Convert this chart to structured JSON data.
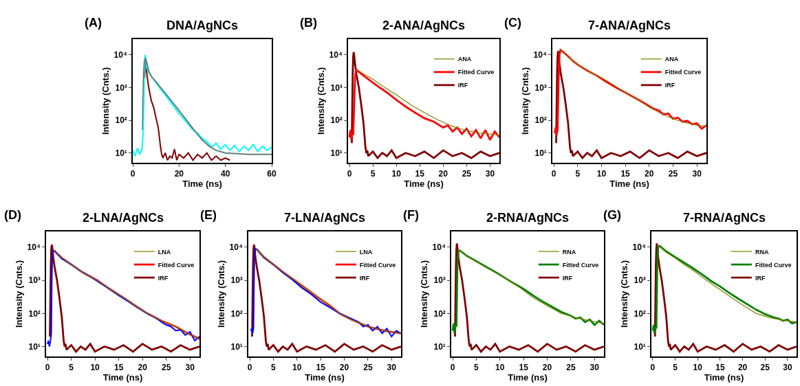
{
  "chart_data": [
    {
      "type": "line",
      "title": "DNA/AgNCs",
      "annotations": [
        "(A)"
      ],
      "xlabel": "Time (ns)",
      "ylabel": "Intensity (Cnts.)",
      "log": "y",
      "grid": false,
      "legend": false,
      "marker": "none",
      "line_style": "solid",
      "xlim": [
        0,
        60
      ],
      "xticks": [
        0,
        20,
        40,
        60
      ],
      "ylim": [
        5,
        30000
      ],
      "yticks": [
        {
          "value": 10,
          "label": "10¹"
        },
        {
          "value": 100,
          "label": "10²"
        },
        {
          "value": 1000,
          "label": "10³"
        },
        {
          "value": 10000,
          "label": "10⁴"
        }
      ],
      "series": [
        {
          "color": "#5f7f7f",
          "x": [
            5.2,
            5.5,
            6,
            7,
            8,
            10,
            12,
            15,
            18,
            21,
            24,
            27,
            30,
            33,
            36,
            40,
            45,
            50,
            60
          ],
          "values": [
            2000,
            8000,
            6000,
            3000,
            2200,
            1500,
            1000,
            550,
            300,
            160,
            85,
            45,
            25,
            16,
            12,
            10,
            9.5,
            9,
            9
          ]
        },
        {
          "color": "#00ffff",
          "x": [
            0,
            1,
            2,
            3,
            4,
            4.5,
            5,
            5.3,
            5.6,
            6,
            7,
            8,
            9,
            10,
            12,
            14,
            16,
            18,
            20,
            22,
            24,
            26,
            28,
            30,
            32,
            34,
            36,
            38,
            40,
            42,
            44,
            46,
            48,
            50,
            52,
            54,
            56,
            58,
            60
          ],
          "values": [
            12,
            8,
            14,
            9,
            13,
            40,
            3000,
            10000,
            7000,
            4000,
            2800,
            2200,
            1800,
            1400,
            900,
            600,
            380,
            250,
            160,
            110,
            75,
            50,
            40,
            28,
            22,
            15,
            20,
            13,
            18,
            12,
            17,
            11,
            16,
            12,
            18,
            11,
            16,
            12,
            15
          ]
        },
        {
          "color": "#800000",
          "x": [
            4.3,
            4.7,
            5,
            5.3,
            5.6,
            6,
            6.5,
            7,
            7.5,
            8,
            9,
            10,
            11,
            11.5,
            12,
            12.5,
            13,
            14,
            15,
            16,
            17,
            18,
            19,
            20,
            22,
            24,
            26,
            28,
            30,
            32,
            34,
            36,
            38,
            40,
            42
          ],
          "values": [
            50,
            2000,
            6000,
            8000,
            5000,
            3000,
            1500,
            900,
            600,
            400,
            250,
            120,
            60,
            30,
            15,
            9,
            7,
            10,
            6,
            8,
            7,
            13,
            6,
            9,
            7,
            10,
            6,
            9,
            7,
            10,
            6,
            8,
            6,
            7,
            6
          ]
        }
      ]
    },
    {
      "type": "line",
      "title": "2-ANA/AgNCs",
      "annotations": [
        "(B)"
      ],
      "xlabel": "Time (ns)",
      "ylabel": "Intensity (Cnts.)",
      "log": "y",
      "grid": false,
      "legend": "top right",
      "marker": "none",
      "line_style": "solid",
      "xlim": [
        -0.3,
        32
      ],
      "xticks": [
        0,
        5,
        10,
        15,
        20,
        25,
        30
      ],
      "ylim": [
        5,
        30000
      ],
      "yticks": [
        {
          "value": 10,
          "label": "10¹"
        },
        {
          "value": 100,
          "label": "10²"
        },
        {
          "value": 1000,
          "label": "10³"
        },
        {
          "value": 10000,
          "label": "10⁴"
        }
      ],
      "series": [
        {
          "name": "ANA",
          "color": "#808000",
          "x": [
            1.4,
            2,
            3,
            5,
            7.5,
            10,
            13,
            16,
            19,
            22,
            25,
            28,
            32
          ],
          "values": [
            3500,
            3200,
            2600,
            1800,
            1000,
            600,
            300,
            170,
            100,
            65,
            48,
            40,
            35
          ]
        },
        {
          "name": "Fitted Curve",
          "color": "#ff0000",
          "x": [
            0,
            0.2,
            0.4,
            0.6,
            0.8,
            1.0,
            1.2,
            1.4,
            2,
            3,
            4,
            5,
            6,
            8,
            10,
            12,
            14,
            16,
            18,
            20,
            21,
            22,
            23,
            24,
            25,
            26,
            27,
            28,
            29,
            30,
            31,
            32
          ],
          "values": [
            30,
            50,
            25,
            45,
            35,
            300,
            2000,
            3600,
            3000,
            2300,
            1800,
            1400,
            1100,
            700,
            420,
            260,
            170,
            115,
            90,
            60,
            70,
            45,
            60,
            38,
            55,
            32,
            50,
            28,
            50,
            25,
            45,
            30
          ]
        },
        {
          "name": "IRF",
          "color": "#800000",
          "x": [
            0.5,
            0.6,
            0.7,
            0.8,
            0.9,
            1.0,
            1.2,
            1.5,
            2.0,
            2.5,
            3.0,
            3.4,
            3.6,
            3.8,
            4,
            5,
            6,
            7,
            8,
            9,
            10,
            12,
            14,
            16,
            18,
            20,
            22,
            24,
            26,
            28,
            30,
            32
          ],
          "values": [
            20,
            300,
            3000,
            9000,
            12000,
            10000,
            5000,
            2500,
            1000,
            300,
            80,
            15,
            10,
            12,
            8,
            11,
            7,
            10,
            8,
            12,
            7,
            10,
            8,
            11,
            7,
            12,
            8,
            10,
            7,
            11,
            8,
            10
          ]
        }
      ]
    },
    {
      "type": "line",
      "title": "7-ANA/AgNCs",
      "annotations": [
        "(C)"
      ],
      "xlabel": "Time (ns)",
      "ylabel": "Intensity (Cnts.)",
      "log": "y",
      "grid": false,
      "legend": "top right",
      "marker": "none",
      "line_style": "solid",
      "xlim": [
        -0.3,
        32
      ],
      "xticks": [
        0,
        5,
        10,
        15,
        20,
        25,
        30
      ],
      "ylim": [
        5,
        30000
      ],
      "yticks": [
        {
          "value": 10,
          "label": "10¹"
        },
        {
          "value": 100,
          "label": "10²"
        },
        {
          "value": 1000,
          "label": "10³"
        },
        {
          "value": 10000,
          "label": "10⁴"
        }
      ],
      "series": [
        {
          "name": "ANA",
          "color": "#808000",
          "x": [
            1.4,
            3,
            5,
            7.5,
            10,
            12.5,
            15,
            17.5,
            20,
            22.5,
            25,
            27.5,
            30,
            32
          ],
          "values": [
            14000,
            8500,
            5000,
            3000,
            2000,
            1200,
            700,
            430,
            250,
            160,
            110,
            85,
            70,
            65
          ]
        },
        {
          "name": "Fitted Curve",
          "color": "#ff0000",
          "x": [
            0.2,
            0.4,
            0.6,
            0.8,
            1.0,
            1.2,
            1.4,
            2,
            3,
            4,
            5,
            7,
            9,
            11,
            13,
            15,
            17,
            19,
            21,
            22,
            23,
            24,
            25,
            26,
            27,
            28,
            29,
            30,
            31,
            32
          ],
          "values": [
            40,
            60,
            35,
            55,
            2000,
            10000,
            14000,
            12000,
            9000,
            6500,
            5000,
            3300,
            2300,
            1500,
            1000,
            700,
            480,
            330,
            220,
            200,
            150,
            160,
            110,
            120,
            90,
            95,
            75,
            80,
            55,
            70
          ]
        },
        {
          "name": "IRF",
          "color": "#800000",
          "x": [
            0.5,
            0.6,
            0.7,
            0.8,
            0.9,
            1.0,
            1.2,
            1.5,
            2.0,
            2.5,
            3.0,
            3.4,
            3.6,
            3.8,
            4,
            5,
            6,
            7,
            8,
            9,
            10,
            12,
            14,
            16,
            18,
            20,
            22,
            24,
            26,
            28,
            30,
            32
          ],
          "values": [
            20,
            300,
            3000,
            9000,
            13000,
            10000,
            5000,
            2500,
            1000,
            300,
            80,
            15,
            10,
            12,
            8,
            11,
            7,
            10,
            8,
            12,
            7,
            10,
            8,
            11,
            7,
            12,
            8,
            10,
            7,
            11,
            8,
            10
          ]
        }
      ]
    },
    {
      "type": "line",
      "title": "2-LNA/AgNCs",
      "annotations": [
        "(D)"
      ],
      "xlabel": "Time (ns)",
      "ylabel": "Intensity (Cnts.)",
      "log": "y",
      "grid": false,
      "legend": "top right",
      "marker": "none",
      "line_style": "solid",
      "xlim": [
        -0.3,
        32
      ],
      "xticks": [
        0,
        5,
        10,
        15,
        20,
        25,
        30
      ],
      "ylim": [
        5,
        30000
      ],
      "yticks": [
        {
          "value": 10,
          "label": "10¹"
        },
        {
          "value": 100,
          "label": "10²"
        },
        {
          "value": 1000,
          "label": "10³"
        },
        {
          "value": 10000,
          "label": "10⁴"
        }
      ],
      "series": [
        {
          "name": "LNA",
          "color": "#808000",
          "x": [
            1.3,
            3,
            5,
            7.5,
            10.5,
            13,
            16,
            18.5,
            21,
            24,
            27,
            29.5,
            32
          ],
          "values": [
            8000,
            4800,
            3000,
            1700,
            1000,
            560,
            300,
            170,
            100,
            60,
            40,
            25,
            17
          ]
        },
        {
          "color": "#0000ff",
          "x": [
            0,
            0.2,
            0.4,
            0.6,
            0.8,
            0.9,
            1.0,
            1.2,
            1.5,
            3,
            5,
            7,
            9,
            11,
            13,
            15,
            17,
            19,
            21,
            23,
            24,
            25,
            26,
            27,
            28,
            29,
            30,
            31,
            32
          ],
          "values": [
            12,
            15,
            10,
            14,
            25,
            800,
            5000,
            8000,
            7800,
            4500,
            3000,
            1900,
            1300,
            850,
            550,
            350,
            230,
            150,
            100,
            70,
            55,
            45,
            40,
            30,
            32,
            22,
            28,
            15,
            20
          ]
        },
        {
          "name": "Fitted Curve",
          "color": "#ff0000",
          "x": [
            1.3,
            3,
            5,
            7.5,
            10.5,
            13,
            16,
            18.5,
            21,
            24,
            27,
            29.5,
            32
          ],
          "values": [
            8000,
            4800,
            3000,
            1700,
            1000,
            560,
            300,
            170,
            100,
            60,
            40,
            25,
            17
          ]
        },
        {
          "name": "IRF",
          "color": "#800000",
          "x": [
            0.5,
            0.6,
            0.7,
            0.8,
            0.9,
            1.0,
            1.2,
            1.5,
            2.0,
            2.5,
            3.0,
            3.4,
            3.6,
            3.8,
            4,
            5,
            6,
            7,
            8,
            9,
            10,
            12,
            14,
            16,
            18,
            20,
            22,
            24,
            26,
            28,
            30,
            32
          ],
          "values": [
            20,
            300,
            3000,
            9000,
            12000,
            10000,
            5000,
            2500,
            1000,
            300,
            80,
            15,
            10,
            12,
            8,
            11,
            7,
            10,
            8,
            12,
            7,
            10,
            8,
            11,
            7,
            12,
            8,
            10,
            7,
            11,
            8,
            10
          ]
        }
      ]
    },
    {
      "type": "line",
      "title": "7-LNA/AgNCs",
      "annotations": [
        "(E)"
      ],
      "xlabel": "Time (ns)",
      "ylabel": "Intensity (Cnts.)",
      "log": "y",
      "grid": false,
      "legend": "top right",
      "marker": "none",
      "line_style": "solid",
      "xlim": [
        -0.3,
        32
      ],
      "xticks": [
        0,
        5,
        10,
        15,
        20,
        25,
        30
      ],
      "ylim": [
        5,
        30000
      ],
      "yticks": [
        {
          "value": 10,
          "label": "10¹"
        },
        {
          "value": 100,
          "label": "10²"
        },
        {
          "value": 1000,
          "label": "10³"
        },
        {
          "value": 10000,
          "label": "10⁴"
        }
      ],
      "series": [
        {
          "name": "LNA",
          "color": "#808000",
          "x": [
            1.4,
            3,
            5,
            7,
            9.5,
            12,
            14.5,
            17,
            19,
            21.5,
            25,
            28.5,
            32
          ],
          "values": [
            9000,
            5000,
            3000,
            1800,
            1000,
            550,
            300,
            170,
            100,
            65,
            40,
            30,
            25
          ]
        },
        {
          "color": "#0000ff",
          "x": [
            0.2,
            0.4,
            0.6,
            0.8,
            0.9,
            1.0,
            1.2,
            1.5,
            3,
            5,
            7,
            9,
            11,
            13,
            15,
            17,
            19,
            21,
            23,
            24,
            25,
            26,
            27,
            28,
            29,
            30,
            31,
            32
          ],
          "values": [
            30,
            35,
            25,
            35,
            900,
            6000,
            9000,
            8500,
            4800,
            3000,
            1700,
            1050,
            600,
            380,
            220,
            150,
            100,
            75,
            55,
            40,
            45,
            30,
            40,
            25,
            35,
            20,
            30,
            25
          ]
        },
        {
          "name": "Fitted Curve",
          "color": "#ff0000",
          "x": [
            1.4,
            3,
            5,
            7,
            9.5,
            12,
            14.5,
            17,
            19,
            21.5,
            25,
            28.5,
            32
          ],
          "values": [
            9000,
            5000,
            3000,
            1800,
            1000,
            550,
            300,
            170,
            100,
            65,
            40,
            30,
            25
          ]
        },
        {
          "name": "IRF",
          "color": "#800000",
          "x": [
            0.5,
            0.6,
            0.7,
            0.8,
            0.9,
            1.0,
            1.2,
            1.5,
            2.0,
            2.5,
            3.0,
            3.4,
            3.6,
            3.8,
            4,
            5,
            6,
            7,
            8,
            9,
            10,
            12,
            14,
            16,
            18,
            20,
            22,
            24,
            26,
            28,
            30,
            32
          ],
          "values": [
            20,
            300,
            3000,
            9000,
            12000,
            10000,
            5000,
            2500,
            1000,
            300,
            80,
            15,
            10,
            12,
            8,
            11,
            7,
            10,
            8,
            12,
            7,
            10,
            8,
            11,
            7,
            12,
            8,
            10,
            7,
            11,
            8,
            10
          ]
        }
      ]
    },
    {
      "type": "line",
      "title": "2-RNA/AgNCs",
      "annotations": [
        "(F)"
      ],
      "xlabel": "Time (ns)",
      "ylabel": "Intensity (Cnts.)",
      "log": "y",
      "grid": false,
      "legend": "top right",
      "marker": "none",
      "line_style": "solid",
      "xlim": [
        -0.3,
        32
      ],
      "xticks": [
        0,
        5,
        10,
        15,
        20,
        25,
        30
      ],
      "ylim": [
        5,
        30000
      ],
      "yticks": [
        {
          "value": 10,
          "label": "10¹"
        },
        {
          "value": 100,
          "label": "10²"
        },
        {
          "value": 1000,
          "label": "10³"
        },
        {
          "value": 10000,
          "label": "10⁴"
        }
      ],
      "series": [
        {
          "name": "RNA",
          "color": "#808000",
          "x": [
            1.3,
            3,
            6,
            9,
            12,
            14.5,
            17,
            20,
            23,
            26,
            29,
            32
          ],
          "values": [
            8000,
            5500,
            3000,
            1700,
            1000,
            560,
            300,
            170,
            100,
            75,
            60,
            50
          ]
        },
        {
          "name": "Fitted Curve",
          "color": "#008000",
          "x": [
            0,
            0.2,
            0.4,
            0.6,
            0.8,
            1.0,
            1.2,
            1.5,
            3,
            5,
            7,
            9,
            11,
            13,
            15,
            17,
            19,
            21,
            23,
            25,
            26,
            27,
            28,
            29,
            30,
            31,
            32
          ],
          "values": [
            30,
            50,
            25,
            45,
            40,
            3000,
            7500,
            8000,
            5500,
            3800,
            2600,
            1800,
            1200,
            800,
            550,
            350,
            230,
            160,
            110,
            85,
            70,
            75,
            55,
            65,
            45,
            60,
            45
          ]
        },
        {
          "name": "IRF",
          "color": "#800000",
          "x": [
            0.5,
            0.6,
            0.7,
            0.8,
            0.9,
            1.0,
            1.2,
            1.5,
            2.0,
            2.5,
            3.0,
            3.4,
            3.6,
            3.8,
            4,
            5,
            6,
            7,
            8,
            9,
            10,
            12,
            14,
            16,
            18,
            20,
            22,
            24,
            26,
            28,
            30,
            32
          ],
          "values": [
            20,
            300,
            3000,
            9000,
            13000,
            10000,
            5000,
            2500,
            1000,
            300,
            80,
            15,
            10,
            12,
            8,
            11,
            7,
            10,
            8,
            12,
            7,
            10,
            8,
            11,
            7,
            12,
            8,
            10,
            7,
            11,
            8,
            10
          ]
        }
      ]
    },
    {
      "type": "line",
      "title": "7-RNA/AgNCs",
      "annotations": [
        "(G)"
      ],
      "xlabel": "Time (ns)",
      "ylabel": "Intensity (Cnts.)",
      "log": "y",
      "grid": false,
      "legend": "top right",
      "marker": "none",
      "line_style": "solid",
      "xlim": [
        -0.3,
        32
      ],
      "xticks": [
        0,
        5,
        10,
        15,
        20,
        25,
        30
      ],
      "ylim": [
        5,
        30000
      ],
      "yticks": [
        {
          "value": 10,
          "label": "10¹"
        },
        {
          "value": 100,
          "label": "10²"
        },
        {
          "value": 1000,
          "label": "10³"
        },
        {
          "value": 10000,
          "label": "10⁴"
        }
      ],
      "series": [
        {
          "name": "RNA",
          "color": "#808000",
          "x": [
            1.3,
            3,
            5,
            7,
            9,
            12,
            15,
            17.5,
            20,
            23,
            26,
            29,
            32
          ],
          "values": [
            11000,
            7000,
            4700,
            3000,
            2000,
            1000,
            520,
            300,
            180,
            100,
            75,
            62,
            55
          ]
        },
        {
          "name": "Fitted Curve",
          "color": "#008000",
          "x": [
            0,
            0.2,
            0.4,
            0.6,
            0.8,
            1.0,
            1.2,
            1.5,
            3,
            5,
            7,
            9,
            11,
            13,
            15,
            17,
            19,
            21,
            23,
            25,
            26,
            27,
            28,
            29,
            30,
            31,
            32
          ],
          "values": [
            30,
            45,
            25,
            40,
            35,
            3500,
            10000,
            11000,
            7500,
            5000,
            3400,
            2300,
            1500,
            950,
            650,
            420,
            280,
            190,
            130,
            95,
            85,
            75,
            70,
            60,
            65,
            50,
            55
          ]
        },
        {
          "name": "IRF",
          "color": "#800000",
          "x": [
            0.5,
            0.6,
            0.7,
            0.8,
            0.9,
            1.0,
            1.2,
            1.5,
            2.0,
            2.5,
            3.0,
            3.4,
            3.6,
            3.8,
            4,
            5,
            6,
            7,
            8,
            9,
            10,
            12,
            14,
            16,
            18,
            20,
            22,
            24,
            26,
            28,
            30,
            32
          ],
          "values": [
            20,
            300,
            3000,
            9000,
            13000,
            10000,
            5000,
            2500,
            1000,
            300,
            80,
            15,
            10,
            12,
            8,
            11,
            7,
            10,
            8,
            12,
            7,
            10,
            8,
            11,
            7,
            12,
            8,
            10,
            7,
            11,
            8,
            10
          ]
        }
      ]
    }
  ]
}
